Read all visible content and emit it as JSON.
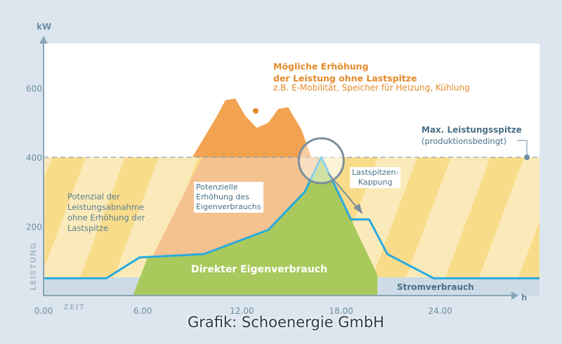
{
  "chart_data": {
    "type": "area",
    "y_unit": "kW",
    "x_unit": "h",
    "y_axis_label": "LEISTUNG",
    "x_axis_label": "ZEIT",
    "x_ticks": [
      "0.00",
      "6.00",
      "12.00",
      "18.00",
      "24.00"
    ],
    "y_ticks": [
      "200",
      "400",
      "600"
    ],
    "xlim": [
      0,
      30
    ],
    "ylim": [
      0,
      700
    ],
    "max_peak_line": 400,
    "series": [
      {
        "name": "Stromverbrauch",
        "color": "#2aa9dd",
        "x": [
          0,
          3.8,
          5.8,
          9.7,
          13.6,
          15.8,
          16.8,
          18.6,
          19.7,
          20.8,
          23.6,
          30
        ],
        "y": [
          50,
          50,
          110,
          120,
          190,
          300,
          400,
          220,
          220,
          120,
          50,
          50
        ]
      },
      {
        "name": "Direkter Eigenverbrauch",
        "color": "#a9c95d",
        "x": [
          5.4,
          6.3,
          9.7,
          13.6,
          15.8,
          16.8,
          18.4,
          20.2,
          20.2
        ],
        "y": [
          0,
          110,
          120,
          190,
          300,
          400,
          240,
          60,
          0
        ]
      },
      {
        "name": "Potenzielle Erhöhung des Eigenverbrauchs",
        "color": "#f3c28f",
        "x": [
          5.4,
          9.6,
          16.8,
          20.2
        ],
        "y": [
          0,
          400,
          400,
          0
        ]
      },
      {
        "name": "Mögliche Erhöhung der Leistung ohne Lastspitze",
        "color": "#f2a352",
        "x": [
          9.0,
          10.5,
          11.0,
          11.6,
          12.2,
          12.9,
          13.6,
          14.2,
          14.8,
          15.6,
          16.2
        ],
        "y": [
          400,
          520,
          565,
          570,
          520,
          485,
          500,
          540,
          545,
          480,
          400
        ]
      }
    ]
  },
  "labels": {
    "y_unit": "kW",
    "x_unit": "h",
    "y_axis": "LEISTUNG",
    "x_axis": "ZEIT",
    "direct": "Direkter Eigenverbrauch",
    "strom": "Stromverbrauch",
    "potential_left": "Potenzial der\nLeistungsabnahme\nohne Erhöhung der\nLastspitze",
    "potential_self": "Potenzielle\nErhöhung des\nEigenverbrauchs",
    "kappung": "Lastspitzen-\nKappung",
    "max_title": "Max. Leistungsspitze",
    "max_sub": "(produktionsbedingt)",
    "increase_title": "Mögliche Erhöhung\nder Leistung ohne Lastspitze",
    "increase_sub": "z.B. E-Mobilität, Speicher für Heizung, Kühlung",
    "credit": "Grafik: Schoenergie GmbH"
  },
  "colors": {
    "background": "#dde6ee",
    "plot": "#ffffff",
    "axis": "#8aa5b8",
    "line": "#2aa9dd",
    "green": "#a9c95d",
    "orange": "#f2a352",
    "peach": "#f3c28f",
    "stripe_a": "#fbeab9",
    "stripe_b": "#f9dc8a",
    "consumption": "#cddbe6",
    "text_blue": "#4a6f86",
    "text_orange": "#e58a2a"
  }
}
